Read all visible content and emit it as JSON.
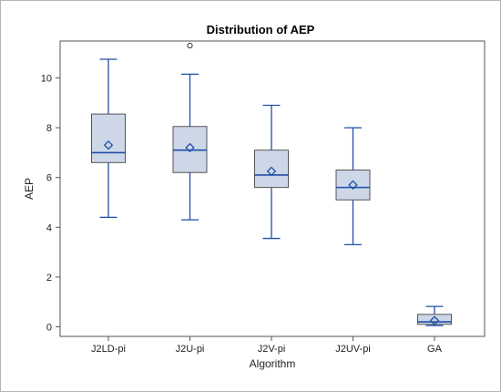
{
  "chart_data": {
    "type": "box",
    "title": "Distribution of AEP",
    "xlabel": "Algorithm",
    "ylabel": "AEP",
    "ylim": [
      -0.3,
      11.6
    ],
    "yticks": [
      0,
      2,
      4,
      6,
      8,
      10
    ],
    "grid": false,
    "colors": {
      "box_fill": "#cdd7e8",
      "box_stroke": "#1f4fa8",
      "outline": "#555555",
      "outer_border": "#b4b4b4"
    },
    "categories": [
      "J2LD-pi",
      "J2U-pi",
      "J2V-pi",
      "J2UV-pi",
      "GA"
    ],
    "boxes": [
      {
        "category": "J2LD-pi",
        "min": 4.4,
        "q1": 6.6,
        "median": 7.0,
        "q3": 8.55,
        "max": 10.75,
        "mean": 7.3,
        "outliers": []
      },
      {
        "category": "J2U-pi",
        "min": 4.3,
        "q1": 6.2,
        "median": 7.1,
        "q3": 8.05,
        "max": 10.15,
        "mean": 7.2,
        "outliers": [
          11.3
        ]
      },
      {
        "category": "J2V-pi",
        "min": 3.55,
        "q1": 5.6,
        "median": 6.1,
        "q3": 7.1,
        "max": 8.9,
        "mean": 6.25,
        "outliers": []
      },
      {
        "category": "J2UV-pi",
        "min": 3.3,
        "q1": 5.1,
        "median": 5.6,
        "q3": 6.3,
        "max": 8.0,
        "mean": 5.7,
        "outliers": []
      },
      {
        "category": "GA",
        "min": 0.05,
        "q1": 0.1,
        "median": 0.2,
        "q3": 0.5,
        "max": 0.82,
        "mean": 0.25,
        "outliers": []
      }
    ]
  }
}
